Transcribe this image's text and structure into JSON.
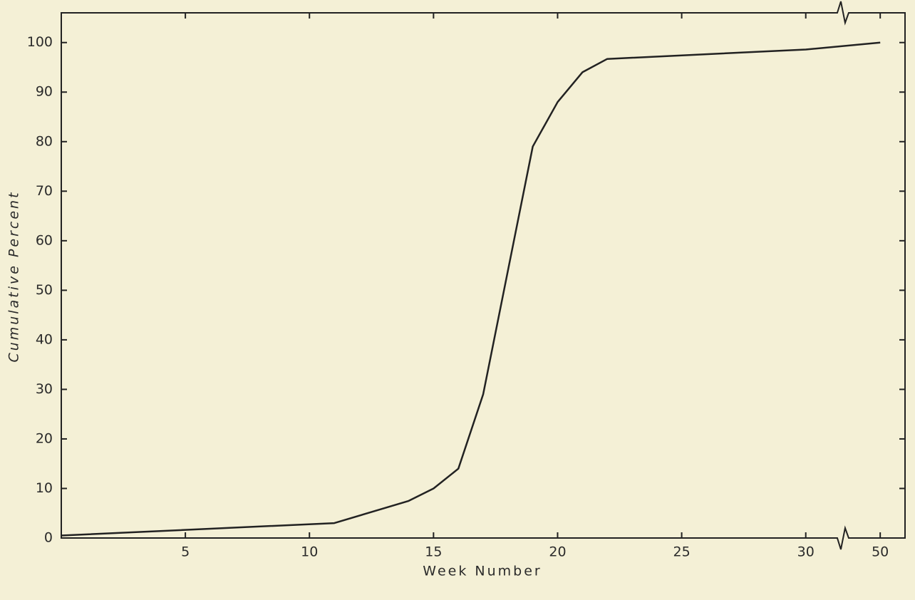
{
  "chart_data": {
    "type": "line",
    "x_label": "Week Number",
    "y_label": "Cumulative Percent",
    "x": [
      0,
      11,
      13,
      14,
      15,
      16,
      17,
      19,
      20,
      21,
      22,
      30,
      50
    ],
    "values": [
      0.5,
      3,
      6,
      7.5,
      10,
      14,
      29,
      79,
      88,
      94,
      96.7,
      98.6,
      100
    ],
    "color": "#222222",
    "xlim": [
      0,
      51
    ],
    "ylim": [
      0,
      106
    ],
    "x_break": [
      31.5,
      48.5
    ],
    "xticks": [
      5,
      10,
      15,
      20,
      25,
      30,
      50
    ],
    "yticks": [
      0,
      10,
      20,
      30,
      40,
      50,
      60,
      70,
      80,
      90,
      100
    ],
    "grid": false
  }
}
